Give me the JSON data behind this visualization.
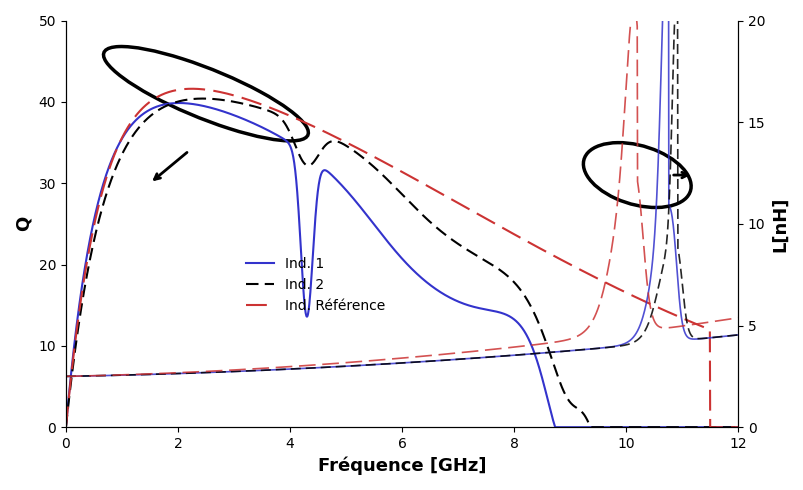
{
  "title": "",
  "xlabel": "Fréquence [GHz]",
  "ylabel_left": "Q",
  "ylabel_right": "L[nH]",
  "xlim": [
    0,
    12
  ],
  "ylim_left": [
    0,
    50
  ],
  "ylim_right": [
    0,
    20
  ],
  "x_ticks": [
    0,
    2,
    4,
    6,
    8,
    10,
    12
  ],
  "y_ticks_left": [
    0,
    10,
    20,
    30,
    40,
    50
  ],
  "y_ticks_right": [
    0,
    5,
    10,
    15,
    20
  ],
  "legend_labels": [
    "Ind. 1",
    "Ind. 2",
    "Ind. Référence"
  ],
  "color_ind1": "#3333cc",
  "color_ind2": "#000000",
  "color_ref": "#cc3333",
  "background": "#ffffff"
}
